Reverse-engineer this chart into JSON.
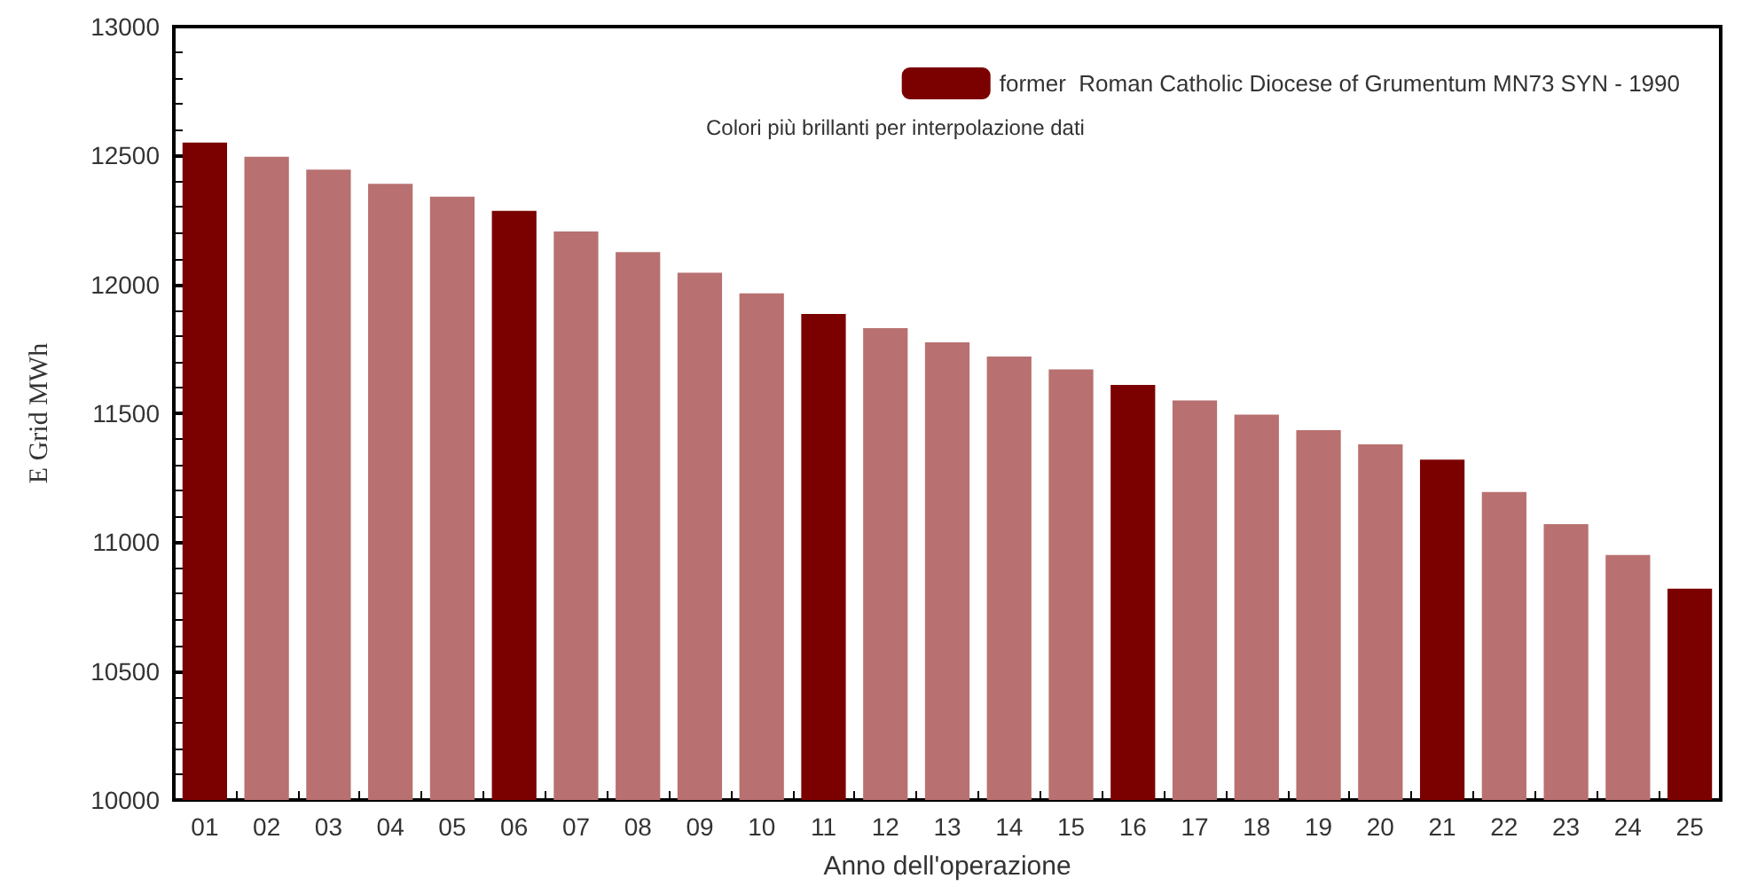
{
  "chart_data": {
    "type": "bar",
    "categories": [
      "01",
      "02",
      "03",
      "04",
      "05",
      "06",
      "07",
      "08",
      "09",
      "10",
      "11",
      "12",
      "13",
      "14",
      "15",
      "16",
      "17",
      "18",
      "19",
      "20",
      "21",
      "22",
      "23",
      "24",
      "25"
    ],
    "series": [
      {
        "name": "former  Roman Catholic Diocese of Grumentum MN73 SYN - 1990",
        "color": "#7b0000",
        "values": [
          12550,
          null,
          null,
          null,
          null,
          12285,
          null,
          null,
          null,
          null,
          11885,
          null,
          null,
          null,
          null,
          11610,
          null,
          null,
          null,
          null,
          11320,
          null,
          null,
          null,
          10820
        ]
      },
      {
        "color": "#b87070",
        "values": [
          null,
          12495,
          12445,
          12390,
          12340,
          null,
          12205,
          12125,
          12045,
          11965,
          null,
          11830,
          11775,
          11720,
          11670,
          null,
          11550,
          11495,
          11435,
          11380,
          null,
          11195,
          11070,
          10950,
          null
        ]
      }
    ],
    "xlabel": "Anno dell'operazione",
    "ylabel": "E Grid MWh",
    "annotations": [
      "Colori più brillanti per interpolazione dati"
    ],
    "ylim": [
      10000,
      13000
    ],
    "yticks": [
      10000,
      10500,
      11000,
      11500,
      12000,
      12500,
      13000
    ],
    "grid": false,
    "legend": "top right"
  }
}
